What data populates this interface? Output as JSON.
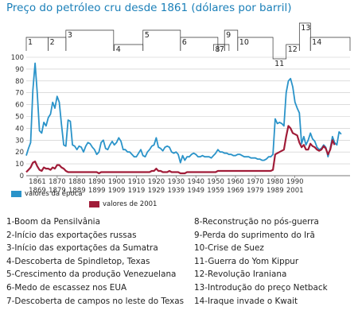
{
  "title": "Preço do petróleo cru desde 1861 (dólares por barril)",
  "colors": {
    "nominal": "#2a93c9",
    "real": "#a01c38",
    "grid": "#c8c8c8",
    "title": "#1a7fb8"
  },
  "chart_data": {
    "type": "line",
    "title": "Preço do petróleo cru desde 1861 (dólares por barril)",
    "ylim": [
      0,
      100
    ],
    "xlim": [
      1861,
      2008
    ],
    "yticks": [
      "0",
      "10",
      "20",
      "30",
      "40",
      "50",
      "60",
      "70",
      "80",
      "90",
      "100"
    ],
    "xticks": [
      {
        "top": "1861",
        "bottom": "1869"
      },
      {
        "top": "1870",
        "bottom": "1879"
      },
      {
        "top": "1880",
        "bottom": "1889"
      },
      {
        "top": "1890",
        "bottom": "1899"
      },
      {
        "top": "1900",
        "bottom": "1909"
      },
      {
        "top": "1910",
        "bottom": "1919"
      },
      {
        "top": "1920",
        "bottom": "1929"
      },
      {
        "top": "1930",
        "bottom": "1939"
      },
      {
        "top": "1940",
        "bottom": "1949"
      },
      {
        "top": "1950",
        "bottom": "1959"
      },
      {
        "top": "1960",
        "bottom": "1969"
      },
      {
        "top": "1970",
        "bottom": "1979"
      },
      {
        "top": "1980",
        "bottom": "1989"
      },
      {
        "top": "1990",
        "bottom": "2001"
      }
    ],
    "grid": true,
    "series": [
      {
        "name": "valores da época",
        "points": [
          [
            1861,
            17
          ],
          [
            1862,
            23
          ],
          [
            1863,
            28
          ],
          [
            1864,
            72
          ],
          [
            1865,
            95
          ],
          [
            1866,
            70
          ],
          [
            1867,
            38
          ],
          [
            1868,
            36
          ],
          [
            1869,
            45
          ],
          [
            1870,
            42
          ],
          [
            1871,
            49
          ],
          [
            1872,
            52
          ],
          [
            1873,
            62
          ],
          [
            1874,
            57
          ],
          [
            1875,
            67
          ],
          [
            1876,
            62
          ],
          [
            1877,
            43
          ],
          [
            1878,
            26
          ],
          [
            1879,
            25
          ],
          [
            1880,
            47
          ],
          [
            1881,
            46
          ],
          [
            1882,
            26
          ],
          [
            1883,
            25
          ],
          [
            1884,
            22
          ],
          [
            1885,
            25
          ],
          [
            1886,
            24
          ],
          [
            1887,
            20
          ],
          [
            1888,
            25
          ],
          [
            1889,
            28
          ],
          [
            1890,
            27
          ],
          [
            1891,
            24
          ],
          [
            1892,
            22
          ],
          [
            1893,
            18
          ],
          [
            1894,
            20
          ],
          [
            1895,
            28
          ],
          [
            1896,
            30
          ],
          [
            1897,
            23
          ],
          [
            1898,
            22
          ],
          [
            1899,
            26
          ],
          [
            1900,
            29
          ],
          [
            1901,
            26
          ],
          [
            1902,
            28
          ],
          [
            1903,
            32
          ],
          [
            1904,
            29
          ],
          [
            1905,
            22
          ],
          [
            1906,
            22
          ],
          [
            1907,
            20
          ],
          [
            1908,
            20
          ],
          [
            1909,
            18
          ],
          [
            1910,
            16
          ],
          [
            1911,
            16
          ],
          [
            1912,
            19
          ],
          [
            1913,
            22
          ],
          [
            1914,
            17
          ],
          [
            1915,
            16
          ],
          [
            1916,
            20
          ],
          [
            1917,
            22
          ],
          [
            1918,
            25
          ],
          [
            1919,
            26
          ],
          [
            1920,
            32
          ],
          [
            1921,
            24
          ],
          [
            1922,
            23
          ],
          [
            1923,
            21
          ],
          [
            1924,
            24
          ],
          [
            1925,
            25
          ],
          [
            1926,
            24
          ],
          [
            1927,
            20
          ],
          [
            1928,
            19
          ],
          [
            1929,
            20
          ],
          [
            1930,
            18
          ],
          [
            1931,
            11
          ],
          [
            1932,
            17
          ],
          [
            1933,
            13
          ],
          [
            1934,
            16
          ],
          [
            1935,
            16
          ],
          [
            1936,
            18
          ],
          [
            1937,
            19
          ],
          [
            1938,
            18
          ],
          [
            1939,
            16
          ],
          [
            1940,
            16
          ],
          [
            1941,
            17
          ],
          [
            1942,
            16
          ],
          [
            1943,
            16
          ],
          [
            1944,
            16
          ],
          [
            1945,
            15
          ],
          [
            1946,
            17
          ],
          [
            1947,
            19
          ],
          [
            1948,
            22
          ],
          [
            1949,
            20
          ],
          [
            1950,
            20
          ],
          [
            1951,
            19
          ],
          [
            1952,
            19
          ],
          [
            1953,
            18
          ],
          [
            1954,
            18
          ],
          [
            1955,
            17
          ],
          [
            1956,
            17
          ],
          [
            1957,
            18
          ],
          [
            1958,
            18
          ],
          [
            1959,
            17
          ],
          [
            1960,
            16
          ],
          [
            1961,
            16
          ],
          [
            1962,
            16
          ],
          [
            1963,
            15
          ],
          [
            1964,
            15
          ],
          [
            1965,
            15
          ],
          [
            1966,
            14
          ],
          [
            1967,
            14
          ],
          [
            1968,
            13
          ],
          [
            1969,
            13
          ],
          [
            1970,
            14
          ],
          [
            1971,
            16
          ],
          [
            1972,
            16
          ],
          [
            1973,
            18
          ],
          [
            1974,
            48
          ],
          [
            1975,
            44
          ],
          [
            1976,
            45
          ],
          [
            1977,
            44
          ],
          [
            1978,
            42
          ],
          [
            1979,
            70
          ],
          [
            1980,
            80
          ],
          [
            1981,
            82
          ],
          [
            1982,
            75
          ],
          [
            1983,
            62
          ],
          [
            1984,
            57
          ],
          [
            1985,
            53
          ],
          [
            1986,
            27
          ],
          [
            1987,
            33
          ],
          [
            1988,
            26
          ],
          [
            1989,
            30
          ],
          [
            1990,
            36
          ],
          [
            1991,
            31
          ],
          [
            1992,
            29
          ],
          [
            1993,
            24
          ],
          [
            1994,
            22
          ],
          [
            1995,
            23
          ],
          [
            1996,
            26
          ],
          [
            1997,
            24
          ],
          [
            1998,
            16
          ],
          [
            1999,
            23
          ],
          [
            2000,
            33
          ],
          [
            2001,
            28
          ],
          [
            2002,
            26
          ],
          [
            2003,
            37
          ],
          [
            2004,
            35
          ]
        ]
      },
      {
        "name": "valores de 2001",
        "points": [
          [
            1861,
            3
          ],
          [
            1862,
            5
          ],
          [
            1863,
            7
          ],
          [
            1864,
            11
          ],
          [
            1865,
            12
          ],
          [
            1866,
            8
          ],
          [
            1867,
            5
          ],
          [
            1868,
            4
          ],
          [
            1869,
            7
          ],
          [
            1870,
            6
          ],
          [
            1871,
            6
          ],
          [
            1872,
            5
          ],
          [
            1873,
            7
          ],
          [
            1874,
            6
          ],
          [
            1875,
            9
          ],
          [
            1876,
            9
          ],
          [
            1877,
            7
          ],
          [
            1878,
            6
          ],
          [
            1879,
            4
          ],
          [
            1880,
            3
          ],
          [
            1881,
            3
          ],
          [
            1882,
            3
          ],
          [
            1883,
            3
          ],
          [
            1884,
            3
          ],
          [
            1885,
            3
          ],
          [
            1886,
            3
          ],
          [
            1887,
            3
          ],
          [
            1888,
            3
          ],
          [
            1889,
            3
          ],
          [
            1890,
            3
          ],
          [
            1891,
            3
          ],
          [
            1892,
            3
          ],
          [
            1893,
            3
          ],
          [
            1894,
            2
          ],
          [
            1895,
            3
          ],
          [
            1896,
            3
          ],
          [
            1897,
            3
          ],
          [
            1898,
            3
          ],
          [
            1899,
            3
          ],
          [
            1900,
            3
          ],
          [
            1901,
            3
          ],
          [
            1902,
            3
          ],
          [
            1903,
            3
          ],
          [
            1904,
            3
          ],
          [
            1905,
            3
          ],
          [
            1906,
            3
          ],
          [
            1907,
            3
          ],
          [
            1908,
            3
          ],
          [
            1909,
            3
          ],
          [
            1910,
            3
          ],
          [
            1911,
            3
          ],
          [
            1912,
            3
          ],
          [
            1913,
            3
          ],
          [
            1914,
            3
          ],
          [
            1915,
            3
          ],
          [
            1916,
            3
          ],
          [
            1917,
            3
          ],
          [
            1918,
            4
          ],
          [
            1919,
            4
          ],
          [
            1920,
            6
          ],
          [
            1921,
            4
          ],
          [
            1922,
            4
          ],
          [
            1923,
            3
          ],
          [
            1924,
            3
          ],
          [
            1925,
            3
          ],
          [
            1926,
            4
          ],
          [
            1927,
            3
          ],
          [
            1928,
            3
          ],
          [
            1929,
            3
          ],
          [
            1930,
            3
          ],
          [
            1931,
            2
          ],
          [
            1932,
            2
          ],
          [
            1933,
            2
          ],
          [
            1934,
            3
          ],
          [
            1935,
            3
          ],
          [
            1936,
            3
          ],
          [
            1937,
            3
          ],
          [
            1938,
            3
          ],
          [
            1939,
            3
          ],
          [
            1940,
            3
          ],
          [
            1941,
            3
          ],
          [
            1942,
            3
          ],
          [
            1943,
            3
          ],
          [
            1944,
            3
          ],
          [
            1945,
            3
          ],
          [
            1946,
            3
          ],
          [
            1947,
            3
          ],
          [
            1948,
            4
          ],
          [
            1949,
            4
          ],
          [
            1950,
            4
          ],
          [
            1951,
            4
          ],
          [
            1952,
            4
          ],
          [
            1953,
            4
          ],
          [
            1954,
            4
          ],
          [
            1955,
            4
          ],
          [
            1956,
            4
          ],
          [
            1957,
            4
          ],
          [
            1958,
            4
          ],
          [
            1959,
            4
          ],
          [
            1960,
            4
          ],
          [
            1961,
            4
          ],
          [
            1962,
            4
          ],
          [
            1963,
            4
          ],
          [
            1964,
            4
          ],
          [
            1965,
            4
          ],
          [
            1966,
            4
          ],
          [
            1967,
            4
          ],
          [
            1968,
            4
          ],
          [
            1969,
            4
          ],
          [
            1970,
            4
          ],
          [
            1971,
            4
          ],
          [
            1972,
            4
          ],
          [
            1973,
            5
          ],
          [
            1974,
            18
          ],
          [
            1975,
            19
          ],
          [
            1976,
            20
          ],
          [
            1977,
            21
          ],
          [
            1978,
            22
          ],
          [
            1979,
            33
          ],
          [
            1980,
            42
          ],
          [
            1981,
            40
          ],
          [
            1982,
            36
          ],
          [
            1983,
            35
          ],
          [
            1984,
            34
          ],
          [
            1985,
            28
          ],
          [
            1986,
            24
          ],
          [
            1987,
            26
          ],
          [
            1988,
            22
          ],
          [
            1989,
            22
          ],
          [
            1990,
            27
          ],
          [
            1991,
            25
          ],
          [
            1992,
            24
          ],
          [
            1993,
            22
          ],
          [
            1994,
            21
          ],
          [
            1995,
            22
          ],
          [
            1996,
            25
          ],
          [
            1997,
            23
          ],
          [
            1998,
            18
          ],
          [
            1999,
            22
          ],
          [
            2000,
            30
          ],
          [
            2001,
            26
          ]
        ]
      }
    ],
    "event_markers": [
      {
        "label": "1",
        "year": 1861,
        "level": 1
      },
      {
        "label": "2",
        "year": 1871,
        "level": 1
      },
      {
        "label": "3",
        "year": 1879,
        "level": 0
      },
      {
        "label": "4",
        "year": 1901,
        "level": 2
      },
      {
        "label": "5",
        "year": 1914,
        "level": 0
      },
      {
        "label": "6",
        "year": 1931,
        "level": 1
      },
      {
        "label": "7",
        "year": 1948,
        "level": 2
      },
      {
        "label": "8",
        "year": 1946,
        "level": 2
      },
      {
        "label": "9",
        "year": 1951,
        "level": 0
      },
      {
        "label": "10",
        "year": 1957,
        "level": 1
      },
      {
        "label": "11",
        "year": 1973,
        "level": 4
      },
      {
        "label": "12",
        "year": 1979,
        "level": 2
      },
      {
        "label": "13",
        "year": 1985,
        "level": -1
      },
      {
        "label": "14",
        "year": 1990,
        "level": 1
      }
    ]
  },
  "legend": {
    "nominal": "valores da época",
    "real": "valores de 2001"
  },
  "events": [
    "1-Boom da Pensilvânia",
    "2-Início das exportações russas",
    "3-Início das exportações da Sumatra",
    "4-Descoberta de Spindletop, Texas",
    "5-Crescimento da produção Venezuelana",
    "6-Medo de escassez nos EUA",
    "7-Descoberta de campos no leste do Texas",
    "8-Reconstrução no pós-guerra",
    "9-Perda do suprimento do Irã",
    "10-Crise de Suez",
    "11-Guerra do Yom Kippur",
    "12-Revolução Iraniana",
    "13-Introdução do preço Netback",
    "14-Iraque invade o Kwait"
  ]
}
